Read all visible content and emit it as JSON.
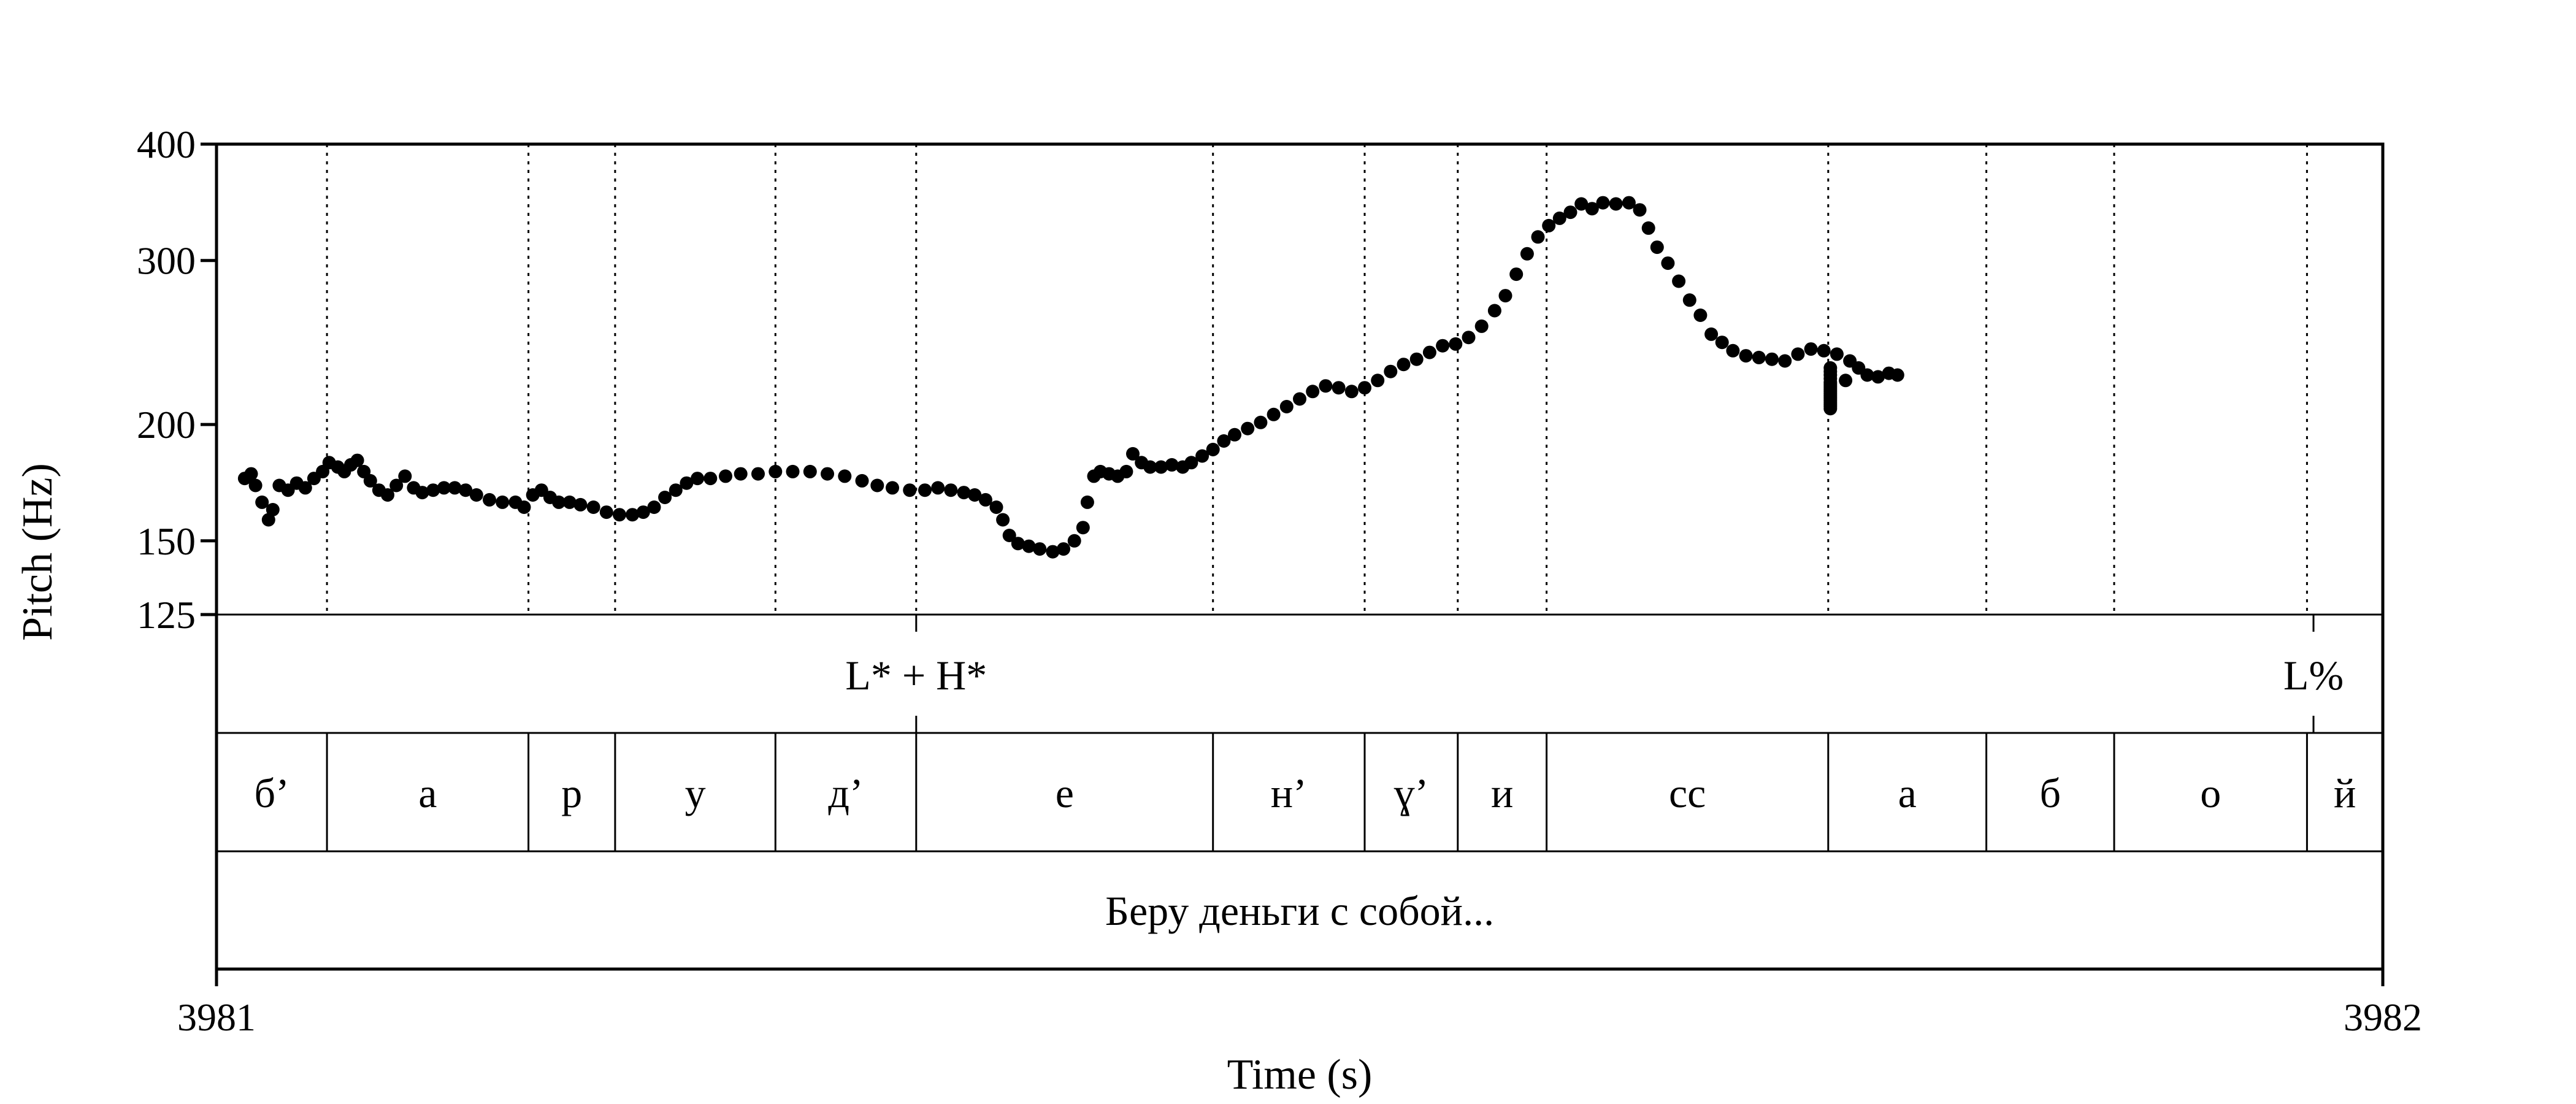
{
  "chart_data": {
    "type": "scatter",
    "title": "",
    "ylabel": "Pitch (Hz)",
    "xlabel": "Time (s)",
    "xlim": [
      3981,
      3982
    ],
    "ylim": [
      125,
      400
    ],
    "yscale": "log",
    "yticks": [
      125,
      150,
      200,
      300,
      400
    ],
    "xticks": [
      3981,
      3982
    ],
    "grid": false,
    "point_color": "#000000",
    "pitch": [
      [
        0.013,
        175
      ],
      [
        0.016,
        177
      ],
      [
        0.018,
        172
      ],
      [
        0.021,
        165
      ],
      [
        0.024,
        158
      ],
      [
        0.026,
        162
      ],
      [
        0.029,
        172
      ],
      [
        0.033,
        170
      ],
      [
        0.037,
        173
      ],
      [
        0.041,
        171
      ],
      [
        0.045,
        175
      ],
      [
        0.049,
        178
      ],
      [
        0.052,
        182
      ],
      [
        0.056,
        180
      ],
      [
        0.059,
        178
      ],
      [
        0.062,
        181
      ],
      [
        0.065,
        183
      ],
      [
        0.068,
        178
      ],
      [
        0.071,
        174
      ],
      [
        0.075,
        170
      ],
      [
        0.079,
        168
      ],
      [
        0.083,
        172
      ],
      [
        0.087,
        176
      ],
      [
        0.091,
        171
      ],
      [
        0.095,
        169
      ],
      [
        0.1,
        170
      ],
      [
        0.105,
        171
      ],
      [
        0.11,
        171
      ],
      [
        0.115,
        170
      ],
      [
        0.12,
        168
      ],
      [
        0.126,
        166
      ],
      [
        0.132,
        165
      ],
      [
        0.138,
        165
      ],
      [
        0.142,
        163
      ],
      [
        0.146,
        168
      ],
      [
        0.15,
        170
      ],
      [
        0.154,
        167
      ],
      [
        0.158,
        165
      ],
      [
        0.163,
        165
      ],
      [
        0.168,
        164
      ],
      [
        0.174,
        163
      ],
      [
        0.18,
        161
      ],
      [
        0.186,
        160
      ],
      [
        0.192,
        160
      ],
      [
        0.197,
        161
      ],
      [
        0.202,
        163
      ],
      [
        0.207,
        167
      ],
      [
        0.212,
        170
      ],
      [
        0.217,
        173
      ],
      [
        0.222,
        175
      ],
      [
        0.228,
        175
      ],
      [
        0.235,
        176
      ],
      [
        0.242,
        177
      ],
      [
        0.25,
        177
      ],
      [
        0.258,
        178
      ],
      [
        0.266,
        178
      ],
      [
        0.274,
        178
      ],
      [
        0.282,
        177
      ],
      [
        0.29,
        176
      ],
      [
        0.298,
        174
      ],
      [
        0.305,
        172
      ],
      [
        0.312,
        171
      ],
      [
        0.32,
        170
      ],
      [
        0.327,
        170
      ],
      [
        0.333,
        171
      ],
      [
        0.339,
        170
      ],
      [
        0.345,
        169
      ],
      [
        0.35,
        168
      ],
      [
        0.355,
        166
      ],
      [
        0.36,
        163
      ],
      [
        0.363,
        158
      ],
      [
        0.366,
        152
      ],
      [
        0.37,
        149
      ],
      [
        0.375,
        148
      ],
      [
        0.38,
        147
      ],
      [
        0.386,
        146
      ],
      [
        0.391,
        147
      ],
      [
        0.396,
        150
      ],
      [
        0.4,
        155
      ],
      [
        0.402,
        165
      ],
      [
        0.405,
        176
      ],
      [
        0.408,
        178
      ],
      [
        0.412,
        177
      ],
      [
        0.416,
        176
      ],
      [
        0.42,
        178
      ],
      [
        0.423,
        186
      ],
      [
        0.427,
        182
      ],
      [
        0.431,
        180
      ],
      [
        0.436,
        180
      ],
      [
        0.441,
        181
      ],
      [
        0.446,
        180
      ],
      [
        0.45,
        182
      ],
      [
        0.455,
        185
      ],
      [
        0.46,
        188
      ],
      [
        0.465,
        192
      ],
      [
        0.47,
        195
      ],
      [
        0.476,
        198
      ],
      [
        0.482,
        201
      ],
      [
        0.488,
        205
      ],
      [
        0.494,
        209
      ],
      [
        0.5,
        213
      ],
      [
        0.506,
        217
      ],
      [
        0.512,
        220
      ],
      [
        0.518,
        219
      ],
      [
        0.524,
        217
      ],
      [
        0.53,
        219
      ],
      [
        0.536,
        223
      ],
      [
        0.542,
        228
      ],
      [
        0.548,
        232
      ],
      [
        0.554,
        235
      ],
      [
        0.56,
        239
      ],
      [
        0.566,
        243
      ],
      [
        0.572,
        244
      ],
      [
        0.578,
        248
      ],
      [
        0.584,
        255
      ],
      [
        0.59,
        265
      ],
      [
        0.595,
        275
      ],
      [
        0.6,
        290
      ],
      [
        0.605,
        305
      ],
      [
        0.61,
        318
      ],
      [
        0.615,
        327
      ],
      [
        0.62,
        333
      ],
      [
        0.625,
        338
      ],
      [
        0.63,
        345
      ],
      [
        0.635,
        341
      ],
      [
        0.64,
        346
      ],
      [
        0.646,
        345
      ],
      [
        0.652,
        346
      ],
      [
        0.657,
        340
      ],
      [
        0.661,
        325
      ],
      [
        0.665,
        310
      ],
      [
        0.67,
        298
      ],
      [
        0.675,
        285
      ],
      [
        0.68,
        272
      ],
      [
        0.685,
        262
      ],
      [
        0.69,
        250
      ],
      [
        0.695,
        245
      ],
      [
        0.7,
        240
      ],
      [
        0.706,
        237
      ],
      [
        0.712,
        236
      ],
      [
        0.718,
        235
      ],
      [
        0.724,
        234
      ],
      [
        0.73,
        238
      ],
      [
        0.736,
        241
      ],
      [
        0.742,
        240
      ],
      [
        0.748,
        238
      ],
      [
        0.754,
        234
      ],
      [
        0.758,
        230
      ],
      [
        0.762,
        226
      ],
      [
        0.767,
        225
      ],
      [
        0.772,
        227
      ],
      [
        0.776,
        226
      ],
      [
        0.745,
        218
      ],
      [
        0.752,
        223
      ],
      [
        0.745,
        226
      ],
      [
        0.745,
        220
      ],
      [
        0.745,
        230
      ],
      [
        0.745,
        228
      ],
      [
        0.745,
        224
      ],
      [
        0.745,
        222
      ],
      [
        0.745,
        221
      ],
      [
        0.745,
        219
      ],
      [
        0.745,
        217
      ],
      [
        0.745,
        216
      ],
      [
        0.745,
        215
      ],
      [
        0.745,
        214
      ],
      [
        0.745,
        213
      ],
      [
        0.745,
        212
      ],
      [
        0.745,
        211
      ],
      [
        0.745,
        210
      ],
      [
        0.745,
        209
      ],
      [
        0.745,
        208
      ]
    ]
  },
  "tiers": {
    "tones": [
      {
        "label": "L* + H*",
        "t": 0.323
      },
      {
        "label": "L%",
        "t": 0.968
      }
    ],
    "segments": [
      {
        "label": "б’",
        "start": 0.0,
        "end": 0.051
      },
      {
        "label": "а",
        "start": 0.051,
        "end": 0.144
      },
      {
        "label": "р",
        "start": 0.144,
        "end": 0.184
      },
      {
        "label": "у",
        "start": 0.184,
        "end": 0.258
      },
      {
        "label": "д’",
        "start": 0.258,
        "end": 0.323
      },
      {
        "label": "е",
        "start": 0.323,
        "end": 0.46
      },
      {
        "label": "н’",
        "start": 0.46,
        "end": 0.53
      },
      {
        "label": "ɣ’",
        "start": 0.53,
        "end": 0.573
      },
      {
        "label": "и",
        "start": 0.573,
        "end": 0.614
      },
      {
        "label": "сс",
        "start": 0.614,
        "end": 0.744
      },
      {
        "label": "а",
        "start": 0.744,
        "end": 0.817
      },
      {
        "label": "б",
        "start": 0.817,
        "end": 0.876
      },
      {
        "label": "о",
        "start": 0.876,
        "end": 0.965
      },
      {
        "label": "й",
        "start": 0.965,
        "end": 1.0
      }
    ],
    "utterance": "Беру деньги с собой..."
  }
}
